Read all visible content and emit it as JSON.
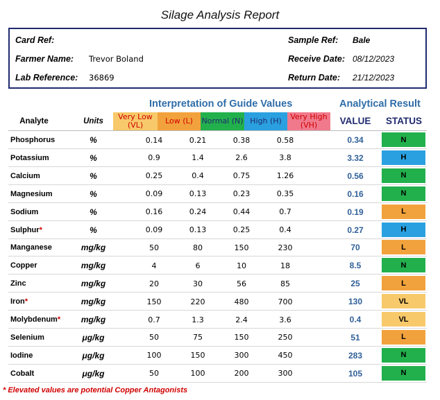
{
  "title": "Silage Analysis Report",
  "info": {
    "card_ref_label": "Card Ref:",
    "card_ref_value": "",
    "farmer_label": "Farmer Name:",
    "farmer_value": "Trevor Boland",
    "lab_ref_label": "Lab Reference:",
    "lab_ref_value": "36869",
    "sample_ref_label": "Sample Ref:",
    "sample_ref_value": "Bale",
    "receive_label": "Receive Date:",
    "receive_value": "08/12/2023",
    "return_label": "Return Date:",
    "return_value": "21/12/2023"
  },
  "sections": {
    "guide": "Interpretation of Guide Values",
    "result": "Analytical Result"
  },
  "headers": {
    "analyte": "Analyte",
    "units": "Units",
    "vl": "Very Low (VL)",
    "l": "Low (L)",
    "n": "Normal (N)",
    "h": "High (H)",
    "vh": "Very High (VH)",
    "value": "VALUE",
    "status": "STATUS"
  },
  "colors": {
    "vl": "#f8c96a",
    "l": "#f2a23c",
    "n": "#22b04c",
    "h": "#2aa0e0",
    "vh": "#f07a8c",
    "frame": "#1f2a6e",
    "value_text": "#2f5f98",
    "section_text": "#2f6da8"
  },
  "rows": [
    {
      "analyte": "Phosphorus",
      "star": "",
      "unit": "%",
      "vl": "0.14",
      "l": "0.21",
      "n": "0.38",
      "h": "0.58",
      "value": "0.34",
      "status": "N"
    },
    {
      "analyte": "Potassium",
      "star": "",
      "unit": "%",
      "vl": "0.9",
      "l": "1.4",
      "n": "2.6",
      "h": "3.8",
      "value": "3.32",
      "status": "H"
    },
    {
      "analyte": "Calcium",
      "star": "",
      "unit": "%",
      "vl": "0.25",
      "l": "0.4",
      "n": "0.75",
      "h": "1.26",
      "value": "0.56",
      "status": "N"
    },
    {
      "analyte": "Magnesium",
      "star": "",
      "unit": "%",
      "vl": "0.09",
      "l": "0.13",
      "n": "0.23",
      "h": "0.35",
      "value": "0.16",
      "status": "N"
    },
    {
      "analyte": "Sodium",
      "star": "",
      "unit": "%",
      "vl": "0.16",
      "l": "0.24",
      "n": "0.44",
      "h": "0.7",
      "value": "0.19",
      "status": "L"
    },
    {
      "analyte": "Sulphur",
      "star": "*",
      "unit": "%",
      "vl": "0.09",
      "l": "0.13",
      "n": "0.25",
      "h": "0.4",
      "value": "0.27",
      "status": "H"
    },
    {
      "analyte": "Manganese",
      "star": "",
      "unit": "mg/kg",
      "vl": "50",
      "l": "80",
      "n": "150",
      "h": "230",
      "value": "70",
      "status": "L"
    },
    {
      "analyte": "Copper",
      "star": "",
      "unit": "mg/kg",
      "vl": "4",
      "l": "6",
      "n": "10",
      "h": "18",
      "value": "8.5",
      "status": "N"
    },
    {
      "analyte": "Zinc",
      "star": "",
      "unit": "mg/kg",
      "vl": "20",
      "l": "30",
      "n": "56",
      "h": "85",
      "value": "25",
      "status": "L"
    },
    {
      "analyte": "Iron",
      "star": "*",
      "unit": "mg/kg",
      "vl": "150",
      "l": "220",
      "n": "480",
      "h": "700",
      "value": "130",
      "status": "VL"
    },
    {
      "analyte": "Molybdenum",
      "star": "*",
      "unit": "mg/kg",
      "vl": "0.7",
      "l": "1.3",
      "n": "2.4",
      "h": "3.6",
      "value": "0.4",
      "status": "VL"
    },
    {
      "analyte": "Selenium",
      "star": "",
      "unit": "μg/kg",
      "vl": "50",
      "l": "75",
      "n": "150",
      "h": "250",
      "value": "51",
      "status": "L"
    },
    {
      "analyte": "Iodine",
      "star": "",
      "unit": "μg/kg",
      "vl": "100",
      "l": "150",
      "n": "300",
      "h": "450",
      "value": "283",
      "status": "N"
    },
    {
      "analyte": "Cobalt",
      "star": "",
      "unit": "μg/kg",
      "vl": "50",
      "l": "100",
      "n": "200",
      "h": "300",
      "value": "105",
      "status": "N"
    }
  ],
  "footnote": "* Elevated values are potential Copper Antagonists"
}
